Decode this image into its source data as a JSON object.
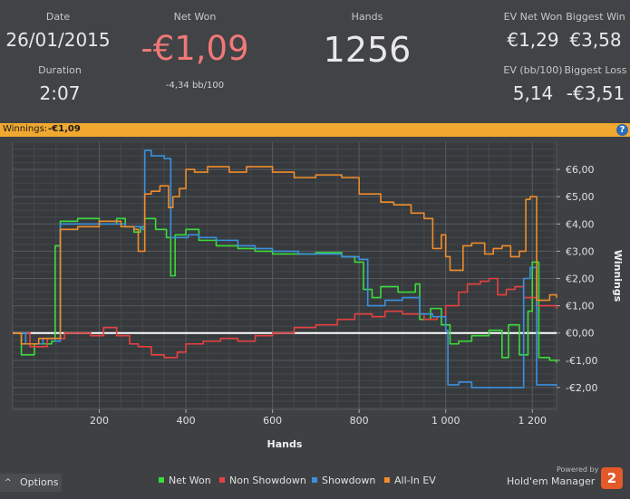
{
  "header": {
    "date_label": "Date",
    "date_value": "26/01/2015",
    "duration_label": "Duration",
    "duration_value": "2:07",
    "net_won_label": "Net Won",
    "net_won_value": "-€1,09",
    "net_won_bb": "-4,34 bb/100",
    "hands_label": "Hands",
    "hands_value": "1256",
    "ev_net_won_label": "EV Net Won",
    "ev_net_won_value": "€1,29",
    "biggest_win_label": "Biggest Win",
    "biggest_win_value": "€3,58",
    "ev_bb_label": "EV (bb/100)",
    "ev_bb_value": "5,14",
    "biggest_loss_label": "Biggest Loss",
    "biggest_loss_value": "-€3,51",
    "net_won_color": "#f07878"
  },
  "banner": {
    "label": "Winnings:",
    "value": "-€1,09",
    "help_glyph": "?",
    "color": "#f0a830"
  },
  "chart_data": {
    "type": "line",
    "xlabel": "Hands",
    "ylabel": "Winnings",
    "xlim": [
      0,
      1256
    ],
    "ylim": [
      -2.8,
      7.0
    ],
    "x_ticks": [
      200,
      400,
      600,
      800,
      1000,
      1200
    ],
    "x_tick_labels": [
      "200",
      "400",
      "600",
      "800",
      "1 000",
      "1 200"
    ],
    "y_ticks": [
      -2,
      -1,
      0,
      1,
      2,
      3,
      4,
      5,
      6
    ],
    "y_tick_labels": [
      "-€2,00",
      "-€1,00",
      "€0,00",
      "€1,00",
      "€2,00",
      "€3,00",
      "€4,00",
      "€5,00",
      "€6,00"
    ],
    "grid": true,
    "zero_line": true,
    "series": [
      {
        "name": "Net Won",
        "color": "#3adc3a",
        "points": [
          [
            0,
            0
          ],
          [
            20,
            -0.8
          ],
          [
            50,
            -0.4
          ],
          [
            90,
            -0.3
          ],
          [
            98,
            3.2
          ],
          [
            110,
            4.1
          ],
          [
            150,
            4.2
          ],
          [
            200,
            4.0
          ],
          [
            240,
            4.2
          ],
          [
            260,
            3.9
          ],
          [
            280,
            3.7
          ],
          [
            295,
            3.9
          ],
          [
            305,
            4.2
          ],
          [
            330,
            3.8
          ],
          [
            355,
            3.5
          ],
          [
            365,
            2.1
          ],
          [
            375,
            3.6
          ],
          [
            400,
            3.8
          ],
          [
            430,
            3.4
          ],
          [
            470,
            3.2
          ],
          [
            520,
            3.1
          ],
          [
            560,
            3.0
          ],
          [
            600,
            2.9
          ],
          [
            660,
            2.9
          ],
          [
            700,
            2.95
          ],
          [
            760,
            2.8
          ],
          [
            790,
            2.6
          ],
          [
            810,
            1.6
          ],
          [
            830,
            1.3
          ],
          [
            850,
            1.7
          ],
          [
            890,
            1.5
          ],
          [
            930,
            1.8
          ],
          [
            940,
            0.5
          ],
          [
            965,
            0.9
          ],
          [
            990,
            0.3
          ],
          [
            1010,
            -0.4
          ],
          [
            1030,
            -0.3
          ],
          [
            1060,
            -0.1
          ],
          [
            1100,
            0.1
          ],
          [
            1130,
            -0.9
          ],
          [
            1145,
            0.3
          ],
          [
            1170,
            -0.8
          ],
          [
            1190,
            0.8
          ],
          [
            1200,
            2.6
          ],
          [
            1215,
            -0.9
          ],
          [
            1240,
            -1.0
          ],
          [
            1256,
            -1.09
          ]
        ]
      },
      {
        "name": "Non Showdown",
        "color": "#e84040",
        "points": [
          [
            0,
            0
          ],
          [
            40,
            -0.5
          ],
          [
            80,
            -0.2
          ],
          [
            120,
            0.0
          ],
          [
            180,
            -0.1
          ],
          [
            210,
            0.2
          ],
          [
            240,
            -0.1
          ],
          [
            270,
            -0.4
          ],
          [
            290,
            -0.5
          ],
          [
            320,
            -0.8
          ],
          [
            350,
            -0.9
          ],
          [
            380,
            -0.7
          ],
          [
            400,
            -0.4
          ],
          [
            440,
            -0.3
          ],
          [
            480,
            -0.2
          ],
          [
            520,
            -0.3
          ],
          [
            560,
            -0.1
          ],
          [
            600,
            0.0
          ],
          [
            650,
            0.2
          ],
          [
            700,
            0.3
          ],
          [
            750,
            0.5
          ],
          [
            790,
            0.7
          ],
          [
            830,
            0.6
          ],
          [
            860,
            0.8
          ],
          [
            900,
            0.7
          ],
          [
            950,
            0.5
          ],
          [
            980,
            0.6
          ],
          [
            1000,
            1.0
          ],
          [
            1030,
            1.5
          ],
          [
            1050,
            1.8
          ],
          [
            1080,
            1.9
          ],
          [
            1100,
            2.0
          ],
          [
            1120,
            1.4
          ],
          [
            1140,
            1.6
          ],
          [
            1160,
            1.7
          ],
          [
            1180,
            1.3
          ],
          [
            1210,
            1.0
          ],
          [
            1256,
            0.9
          ]
        ]
      },
      {
        "name": "Showdown",
        "color": "#3a90e0",
        "points": [
          [
            0,
            0
          ],
          [
            30,
            -0.4
          ],
          [
            70,
            -0.2
          ],
          [
            98,
            -0.3
          ],
          [
            110,
            4.0
          ],
          [
            150,
            4.0
          ],
          [
            200,
            4.0
          ],
          [
            260,
            3.9
          ],
          [
            300,
            3.8
          ],
          [
            305,
            6.7
          ],
          [
            320,
            6.5
          ],
          [
            350,
            6.4
          ],
          [
            360,
            6.4
          ],
          [
            365,
            3.5
          ],
          [
            385,
            3.5
          ],
          [
            405,
            3.6
          ],
          [
            430,
            3.5
          ],
          [
            470,
            3.4
          ],
          [
            520,
            3.2
          ],
          [
            560,
            3.1
          ],
          [
            600,
            3.0
          ],
          [
            660,
            2.9
          ],
          [
            720,
            2.9
          ],
          [
            760,
            2.8
          ],
          [
            800,
            2.7
          ],
          [
            820,
            1.0
          ],
          [
            860,
            1.2
          ],
          [
            900,
            1.3
          ],
          [
            940,
            0.7
          ],
          [
            970,
            0.6
          ],
          [
            1000,
            0.1
          ],
          [
            1005,
            -1.9
          ],
          [
            1030,
            -1.8
          ],
          [
            1060,
            -2.0
          ],
          [
            1100,
            -2.0
          ],
          [
            1140,
            -2.0
          ],
          [
            1170,
            -2.0
          ],
          [
            1180,
            2.0
          ],
          [
            1195,
            2.4
          ],
          [
            1210,
            -1.9
          ],
          [
            1256,
            -1.95
          ]
        ]
      },
      {
        "name": "All-In EV",
        "color": "#f08c2a",
        "points": [
          [
            0,
            0
          ],
          [
            20,
            -0.4
          ],
          [
            60,
            -0.2
          ],
          [
            98,
            -0.2
          ],
          [
            110,
            3.8
          ],
          [
            150,
            3.9
          ],
          [
            200,
            4.1
          ],
          [
            250,
            3.9
          ],
          [
            280,
            3.8
          ],
          [
            290,
            3.0
          ],
          [
            305,
            5.1
          ],
          [
            320,
            5.2
          ],
          [
            340,
            5.4
          ],
          [
            360,
            4.6
          ],
          [
            370,
            5.0
          ],
          [
            385,
            5.3
          ],
          [
            400,
            6.0
          ],
          [
            420,
            5.9
          ],
          [
            450,
            6.1
          ],
          [
            500,
            5.9
          ],
          [
            540,
            6.1
          ],
          [
            600,
            5.9
          ],
          [
            650,
            5.7
          ],
          [
            700,
            5.8
          ],
          [
            760,
            5.7
          ],
          [
            800,
            5.1
          ],
          [
            850,
            4.8
          ],
          [
            880,
            4.7
          ],
          [
            920,
            4.4
          ],
          [
            950,
            4.2
          ],
          [
            970,
            3.1
          ],
          [
            990,
            3.6
          ],
          [
            1000,
            2.8
          ],
          [
            1010,
            2.3
          ],
          [
            1040,
            3.2
          ],
          [
            1060,
            3.3
          ],
          [
            1090,
            2.9
          ],
          [
            1110,
            3.1
          ],
          [
            1130,
            3.2
          ],
          [
            1150,
            2.8
          ],
          [
            1170,
            3.0
          ],
          [
            1185,
            4.9
          ],
          [
            1195,
            5.0
          ],
          [
            1210,
            1.2
          ],
          [
            1240,
            1.4
          ],
          [
            1256,
            1.29
          ]
        ]
      }
    ]
  },
  "footer": {
    "options_chevron": "^",
    "options_label": "Options",
    "legend": [
      {
        "label": "Net Won",
        "color": "#3adc3a"
      },
      {
        "label": "Non Showdown",
        "color": "#e84040"
      },
      {
        "label": "Showdown",
        "color": "#3a90e0"
      },
      {
        "label": "All-In EV",
        "color": "#f08c2a"
      }
    ],
    "powered_by": "Powered by",
    "brand_name": "Hold'em Manager",
    "brand_badge": "2"
  }
}
